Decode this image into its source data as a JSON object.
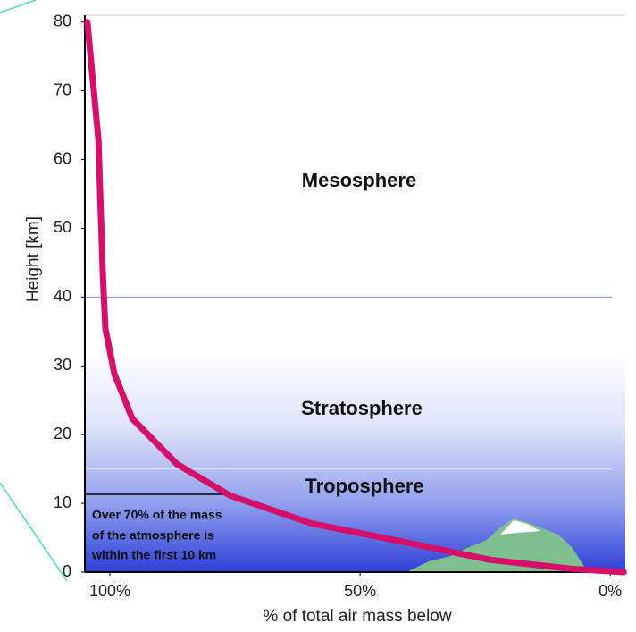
{
  "chart_data": {
    "type": "line",
    "x_label": "% of total air mass below",
    "y_label": "Height [km]",
    "x": [
      104.5,
      102.3,
      101.4,
      100.9,
      99.1,
      95.5,
      86.6,
      75.9,
      59.8,
      42,
      24.1,
      8,
      -2.7
    ],
    "series": [
      {
        "color": "#d4106a",
        "values": [
          80,
          63,
          43,
          35.4,
          28.8,
          22.3,
          15.7,
          11.1,
          7.1,
          4.5,
          1.8,
          0.5,
          0
        ]
      }
    ],
    "xlim": [
      105,
      -3
    ],
    "ylim": [
      0,
      81
    ],
    "xticks": [
      {
        "value": 100,
        "label": "100%"
      },
      {
        "value": 50,
        "label": "50%"
      },
      {
        "value": 0,
        "label": "0%"
      }
    ],
    "yticks": [
      0,
      10,
      20,
      30,
      40,
      50,
      60,
      70,
      80
    ],
    "reference_lines": [
      {
        "y": 40,
        "color": "#8ea0ff"
      },
      {
        "y": 15,
        "color": "#d8ddf6"
      }
    ],
    "annotations": [
      "Mesosphere",
      "Stratosphere",
      "Troposphere",
      "Over 70% of the mass",
      "of the atmosphere is",
      "within the first 10 km"
    ]
  }
}
